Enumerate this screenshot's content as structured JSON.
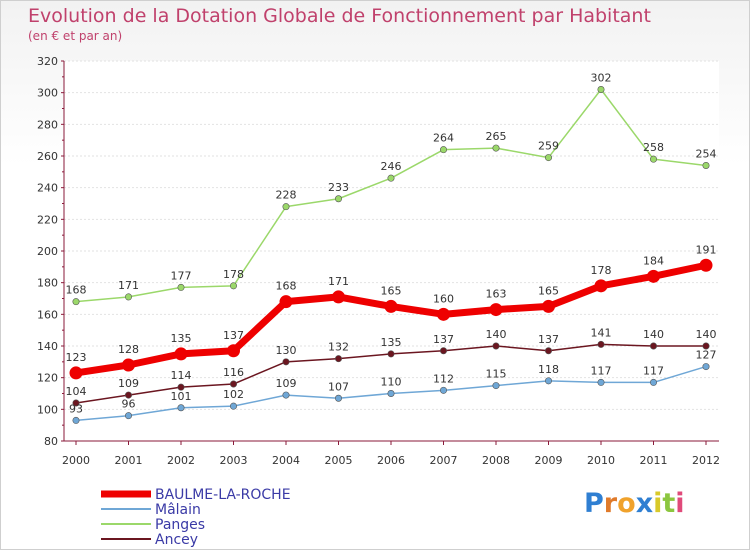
{
  "chart_data": {
    "type": "line",
    "title": "Evolution de la Dotation Globale de Fonctionnement par Habitant",
    "subtitle": "(en € et par an)",
    "categories": [
      "2000",
      "2001",
      "2002",
      "2003",
      "2004",
      "2005",
      "2006",
      "2007",
      "2008",
      "2009",
      "2010",
      "2011",
      "2012"
    ],
    "yticks": [
      "80",
      "100",
      "120",
      "140",
      "160",
      "180",
      "200",
      "220",
      "240",
      "260",
      "280",
      "300",
      "320"
    ],
    "ylim": [
      80,
      320
    ],
    "xlabel": "",
    "ylabel": "",
    "legend_position": "bottom-left",
    "series": [
      {
        "name": "Panges",
        "color": "#9bd86a",
        "values": [
          168,
          171,
          177,
          178,
          228,
          233,
          246,
          264,
          265,
          259,
          302,
          258,
          254
        ]
      },
      {
        "name": "Ancey",
        "color": "#6b1620",
        "values": [
          104,
          109,
          114,
          116,
          130,
          132,
          135,
          137,
          140,
          137,
          141,
          140,
          140
        ]
      },
      {
        "name": "Mâlain",
        "color": "#6fa7d6",
        "values": [
          93,
          96,
          101,
          102,
          109,
          107,
          110,
          112,
          115,
          118,
          117,
          117,
          127
        ]
      },
      {
        "name": "BAULME-LA-ROCHE",
        "color": "#ee0000",
        "values": [
          123,
          128,
          135,
          137,
          168,
          171,
          165,
          160,
          163,
          165,
          178,
          184,
          191
        ]
      }
    ],
    "legend": [
      {
        "name": "BAULME-LA-ROCHE",
        "color": "#ee0000",
        "text_color": "#3a3aa6"
      },
      {
        "name": "Mâlain",
        "color": "#6fa7d6",
        "text_color": "#3a3aa6"
      },
      {
        "name": "Panges",
        "color": "#9bd86a",
        "text_color": "#3a3aa6"
      },
      {
        "name": "Ancey",
        "color": "#6b1620",
        "text_color": "#3a3aa6"
      }
    ]
  },
  "logo": {
    "letters": [
      "P",
      "r",
      "o",
      "x",
      "i",
      "t",
      "i"
    ],
    "colors": [
      "#2f7fd2",
      "#e07a2a",
      "#f0a22c",
      "#2f7fd2",
      "#d8c92a",
      "#8cc63f",
      "#e04a7a"
    ]
  }
}
